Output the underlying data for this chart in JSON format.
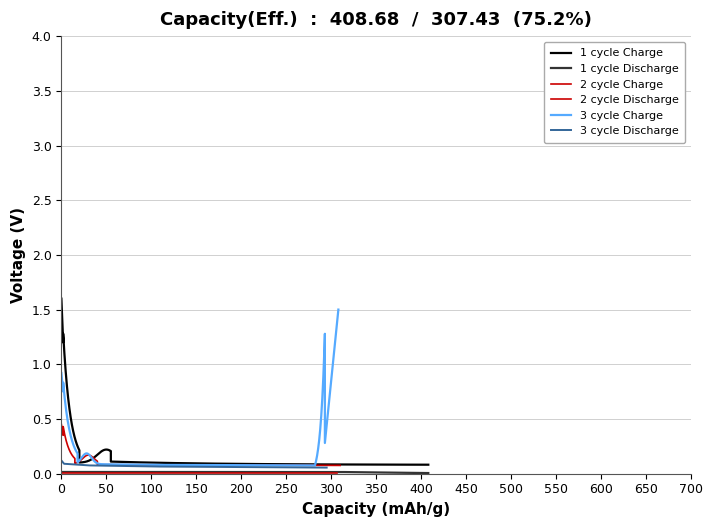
{
  "title": "Capacity(Eff.)  :  408.68  /  307.43  (75.2%)",
  "xlabel": "Capacity (mAh/g)",
  "ylabel": "Voltage (V)",
  "xlim": [
    0,
    700
  ],
  "ylim": [
    0.0,
    4.0
  ],
  "xticks": [
    0,
    50,
    100,
    150,
    200,
    250,
    300,
    350,
    400,
    450,
    500,
    550,
    600,
    650,
    700
  ],
  "yticks": [
    0.0,
    0.5,
    1.0,
    1.5,
    2.0,
    2.5,
    3.0,
    3.5,
    4.0
  ],
  "background_color": "#ffffff",
  "grid_color": "#d0d0d0",
  "title_fontsize": 13,
  "axis_label_fontsize": 11,
  "legend_fontsize": 8,
  "figsize": [
    7.14,
    5.28
  ],
  "dpi": 100,
  "c1_charge_color": "#000000",
  "c1_discharge_color": "#333333",
  "c2_charge_color": "#cc0000",
  "c2_discharge_color": "#cc0000",
  "c3_charge_color": "#55aaff",
  "c3_discharge_color": "#336699"
}
